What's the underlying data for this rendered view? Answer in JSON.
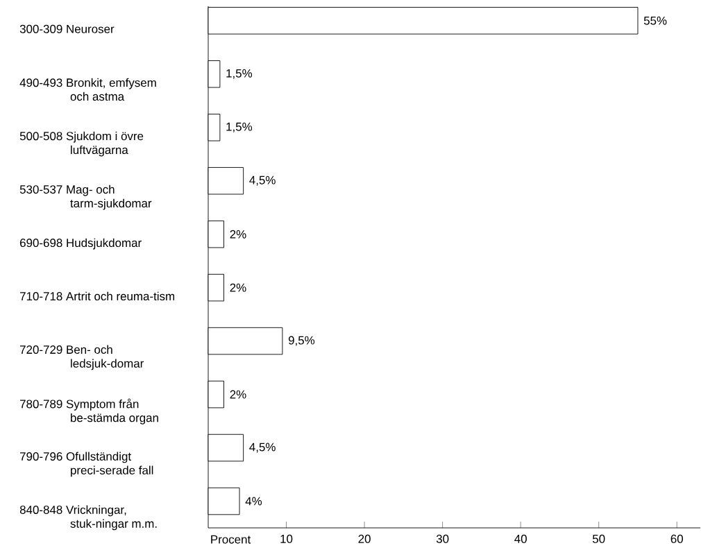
{
  "chart_data": {
    "type": "bar",
    "orientation": "horizontal",
    "xlabel": "Procent",
    "categories": [
      "300-309 Neuroser",
      "490-493 Bronkit, emfysem och astma",
      "500-508 Sjukdom i övre luftvägarna",
      "530-537 Mag- och tarm-sjukdomar",
      "690-698 Hudsjukdomar",
      "710-718 Artrit och reuma-tism",
      "720-729 Ben- och ledsjuk-domar",
      "780-789 Symptom från be-stämda organ",
      "790-796 Ofullständigt preci-serade fall",
      "840-848 Vrickningar, stuk-ningar m.m."
    ],
    "values": [
      55,
      1.5,
      1.5,
      4.5,
      2,
      2,
      9.5,
      2,
      4.5,
      4
    ],
    "value_labels": [
      "55%",
      "1,5%",
      "1,5%",
      "4,5%",
      "2%",
      "2%",
      "9,5%",
      "2%",
      "4,5%",
      "4%"
    ],
    "color": "#ffffff",
    "xlim": [
      0,
      63
    ],
    "xticks": [
      10,
      20,
      30,
      40,
      50,
      60
    ],
    "grid": false
  }
}
